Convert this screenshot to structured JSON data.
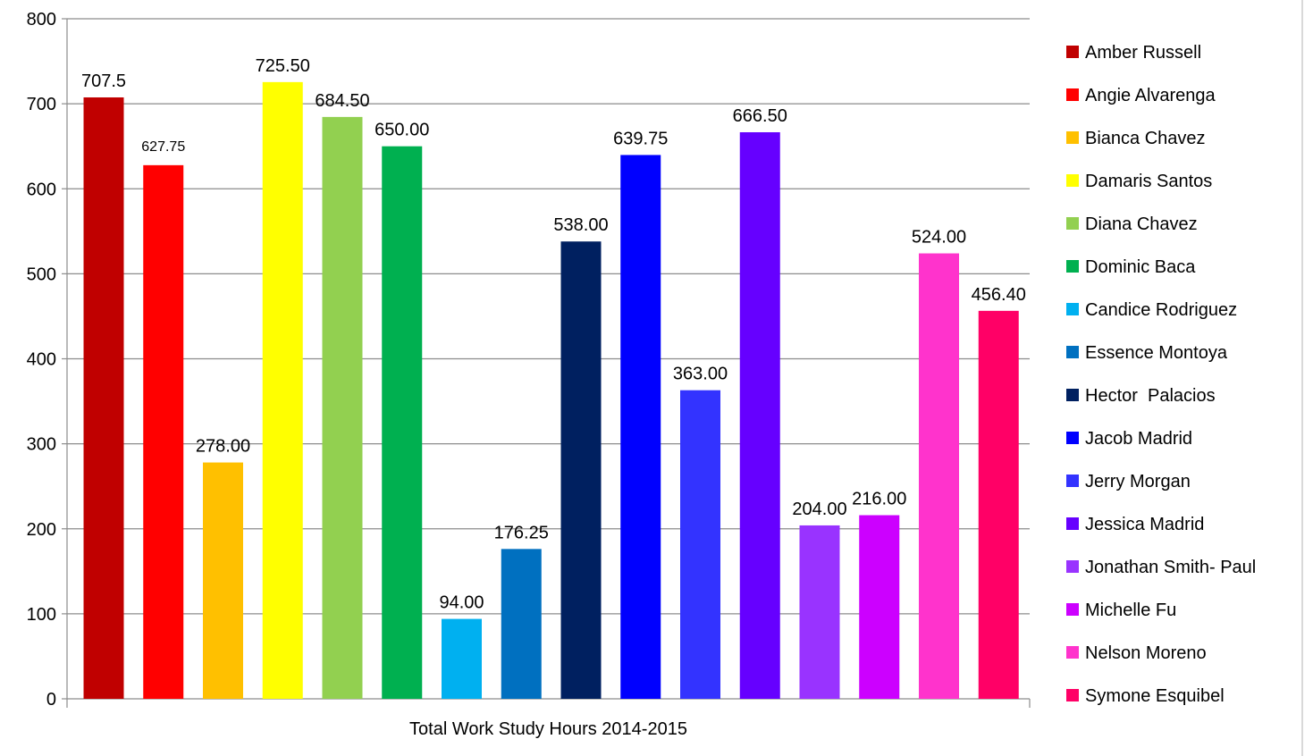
{
  "chart_data": {
    "type": "bar",
    "title": "",
    "xlabel": "Total Work Study Hours 2014-2015",
    "ylabel": "",
    "ylim": [
      0,
      800
    ],
    "y_ticks": [
      "0",
      "100",
      "200",
      "300",
      "400",
      "500",
      "600",
      "700",
      "800"
    ],
    "grid": true,
    "legend_position": "right",
    "series": [
      {
        "name": "Amber Russell",
        "value": 707.5,
        "label": "707.5",
        "color": "#c00000"
      },
      {
        "name": "Angie Alvarenga",
        "value": 627.75,
        "label": "627.75",
        "color": "#ff0000"
      },
      {
        "name": "Bianca Chavez",
        "value": 278.0,
        "label": "278.00",
        "color": "#ffc000"
      },
      {
        "name": "Damaris Santos",
        "value": 725.5,
        "label": "725.50",
        "color": "#ffff00"
      },
      {
        "name": "Diana Chavez",
        "value": 684.5,
        "label": "684.50",
        "color": "#92d050"
      },
      {
        "name": "Dominic Baca",
        "value": 650.0,
        "label": "650.00",
        "color": "#00b050"
      },
      {
        "name": "Candice Rodriguez",
        "value": 94.0,
        "label": "94.00",
        "color": "#00b0f0"
      },
      {
        "name": "Essence Montoya",
        "value": 176.25,
        "label": "176.25",
        "color": "#0070c0"
      },
      {
        "name": "Hector  Palacios",
        "value": 538.0,
        "label": "538.00",
        "color": "#002060"
      },
      {
        "name": "Jacob Madrid",
        "value": 639.75,
        "label": "639.75",
        "color": "#0000ff"
      },
      {
        "name": "Jerry Morgan",
        "value": 363.0,
        "label": "363.00",
        "color": "#3333ff"
      },
      {
        "name": "Jessica Madrid",
        "value": 666.5,
        "label": "666.50",
        "color": "#6600ff"
      },
      {
        "name": "Jonathan Smith- Paul",
        "value": 204.0,
        "label": "204.00",
        "color": "#9933ff"
      },
      {
        "name": "Michelle Fu",
        "value": 216.0,
        "label": "216.00",
        "color": "#cc00ff"
      },
      {
        "name": "Nelson Moreno",
        "value": 524.0,
        "label": "524.00",
        "color": "#ff33cc"
      },
      {
        "name": "Symone Esquibel",
        "value": 456.4,
        "label": "456.40",
        "color": "#ff0066"
      }
    ]
  }
}
